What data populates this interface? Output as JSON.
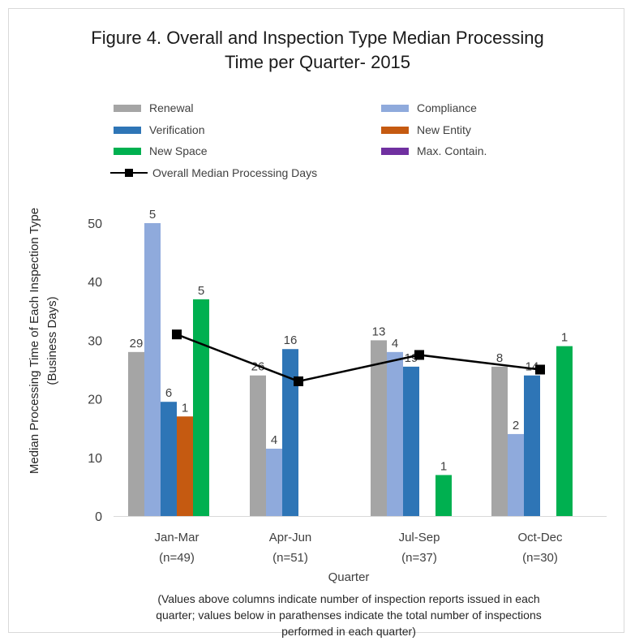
{
  "chart_data": {
    "type": "bar",
    "title_line1": "Figure 4. Overall and Inspection Type Median Processing",
    "title_line2": "Time per Quarter- 2015",
    "ylabel_line1": "Median Processing Time  of Each Inspection Type",
    "ylabel_line2": "(Business Days)",
    "xlabel": "Quarter",
    "note_line1": "(Values above columns indicate  number of inspection reports issued in each",
    "note_line2": "quarter; values below in parathenses indicate the total number of inspections",
    "note_line3": "performed in each quarter)",
    "ylim": [
      0,
      50
    ],
    "yticks": [
      "0",
      "10",
      "20",
      "30",
      "40",
      "50"
    ],
    "categories": [
      {
        "name": "Jan-Mar",
        "n": "(n=49)"
      },
      {
        "name": "Apr-Jun",
        "n": "(n=51)"
      },
      {
        "name": "Jul-Sep",
        "n": "(n=37)"
      },
      {
        "name": "Oct-Dec",
        "n": "(n=30)"
      }
    ],
    "series": [
      {
        "name": "Renewal",
        "color": "#a5a5a5",
        "values": [
          28,
          24,
          30,
          25.5
        ],
        "labels": [
          "29",
          "26",
          "13",
          "8"
        ]
      },
      {
        "name": "Compliance",
        "color": "#8faadc",
        "values": [
          50,
          11.5,
          28,
          14
        ],
        "labels": [
          "5",
          "4",
          "4",
          "2"
        ]
      },
      {
        "name": "Verification",
        "color": "#2e75b6",
        "values": [
          19.5,
          28.5,
          25.5,
          24
        ],
        "labels": [
          "6",
          "16",
          "19",
          "14"
        ]
      },
      {
        "name": "New Entity",
        "color": "#c55a11",
        "values": [
          17,
          null,
          null,
          null
        ],
        "labels": [
          "1",
          "",
          "",
          ""
        ]
      },
      {
        "name": "New Space",
        "color": "#00b050",
        "values": [
          37,
          null,
          7,
          29
        ],
        "labels": [
          "5",
          "",
          "1",
          "1"
        ]
      },
      {
        "name": "Max. Contain.",
        "color": "#7030a0",
        "values": [
          null,
          null,
          null,
          null
        ],
        "labels": [
          "",
          "",
          "",
          ""
        ]
      }
    ],
    "overall": {
      "name": "Overall Median Processing Days",
      "color": "#000000",
      "values": [
        31,
        23,
        27.5,
        25
      ]
    },
    "grid": false,
    "legend_position": "top"
  }
}
